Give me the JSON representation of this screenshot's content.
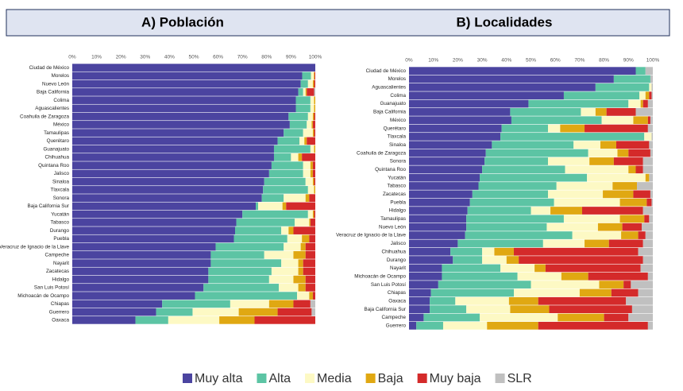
{
  "chart_data": [
    {
      "type": "bar",
      "orientation": "horizontal",
      "stacked": true,
      "title": "A)   Población",
      "categories": [
        "Ciudad de México",
        "Morelos",
        "Nuevo León",
        "Baja California",
        "Colima",
        "Aguascalientes",
        "Coahuila de Zaragoza",
        "México",
        "Tamaulipas",
        "Querétaro",
        "Guanajuato",
        "Chihuahua",
        "Quintana Roo",
        "Jalisco",
        "Sinaloa",
        "Tlaxcala",
        "Sonora",
        "Baja California Sur",
        "Yucatán",
        "Tabasco",
        "Durango",
        "Puebla",
        "Veracruz de Ignacio de la Llave",
        "Campeche",
        "Nayarit",
        "Zacatecas",
        "Hidalgo",
        "San Luis Potosí",
        "Michoacán de Ocampo",
        "Chiapas",
        "Guerrero",
        "Oaxaca"
      ],
      "series": [
        {
          "name": "Muy alta",
          "color": "#4b44a0",
          "values": [
            100,
            94.6,
            94,
            93,
            92,
            92,
            89,
            89.5,
            87,
            84.5,
            83,
            83,
            82,
            81,
            79,
            78.5,
            78,
            75.5,
            70,
            67.5,
            67,
            66.5,
            59,
            57,
            57,
            56,
            56,
            54,
            50.5,
            37,
            34.5,
            26
          ]
        },
        {
          "name": "Alta",
          "color": "#5cc4a4",
          "values": [
            0,
            3.6,
            3,
            2,
            6,
            6,
            8,
            7,
            8,
            9,
            15,
            7,
            13,
            14,
            17,
            18.5,
            9,
            1,
            27,
            24,
            19,
            22,
            28,
            22,
            29,
            26,
            25,
            31,
            42,
            28,
            15,
            13.5
          ]
        },
        {
          "name": "Media",
          "color": "#fdf9c4",
          "values": [
            0,
            1.2,
            2,
            1,
            1.5,
            1.5,
            2,
            2,
            4,
            2,
            1.5,
            3,
            3,
            3,
            3,
            2.5,
            9,
            10,
            2,
            6,
            3,
            6,
            7,
            12,
            7,
            11,
            10,
            8,
            5,
            16,
            19,
            21
          ]
        },
        {
          "name": "Baja",
          "color": "#e0a812",
          "values": [
            0,
            0.3,
            0.5,
            0.5,
            0.5,
            0.5,
            0.5,
            0.5,
            0.5,
            1,
            0.5,
            1.5,
            1,
            1,
            0.5,
            0.5,
            1.5,
            1.5,
            0.5,
            0.5,
            2,
            3,
            2,
            5,
            2,
            2,
            5,
            3,
            1.5,
            10,
            16,
            14.5
          ]
        },
        {
          "name": "Muy baja",
          "color": "#d42a2a",
          "values": [
            0,
            0.3,
            0.5,
            3,
            0,
            0,
            0.5,
            1,
            0.5,
            3.5,
            0,
            5.5,
            1,
            1,
            0.5,
            0,
            2.5,
            12,
            0.5,
            2,
            9,
            2.5,
            4,
            4,
            5,
            5,
            4,
            4,
            1,
            7,
            14,
            25
          ]
        },
        {
          "name": "SLR",
          "color": "#c0c0c0",
          "values": [
            0,
            0,
            0,
            0.5,
            0,
            0,
            0,
            0,
            0,
            0,
            0,
            0,
            0,
            0,
            0,
            0,
            0,
            0,
            0,
            0,
            0,
            0,
            0,
            0,
            0,
            0,
            0,
            0,
            0,
            2,
            1.5,
            0
          ]
        }
      ],
      "xlim": [
        0,
        100
      ],
      "xticks": [
        {
          "value": 0,
          "label": "0%"
        },
        {
          "value": 10,
          "label": "10%"
        },
        {
          "value": 20,
          "label": "20%"
        },
        {
          "value": 30,
          "label": "30%"
        },
        {
          "value": 40,
          "label": "40%"
        },
        {
          "value": 50,
          "label": "50%"
        },
        {
          "value": 60,
          "label": "60%"
        },
        {
          "value": 70,
          "label": "70%"
        },
        {
          "value": 80,
          "label": "80%"
        },
        {
          "value": 90,
          "label": "90%"
        },
        {
          "value": 100,
          "label": "100%"
        }
      ],
      "legend": "bottom"
    },
    {
      "type": "bar",
      "orientation": "horizontal",
      "stacked": true,
      "title": "B) Localidades",
      "categories": [
        "Ciudad de México",
        "Morelos",
        "Aguascalientes",
        "Colima",
        "Guanajuato",
        "Baja California",
        "México",
        "Querétaro",
        "Tlaxcala",
        "Sinaloa",
        "Coahuila de Zaragoza",
        "Sonora",
        "Quintana Roo",
        "Yucatán",
        "Tabasco",
        "Zacatecas",
        "Puebla",
        "Hidalgo",
        "Tamaulipas",
        "Nuevo León",
        "Veracruz de Ignacio de la Llave",
        "Jalisco",
        "Chihuahua",
        "Durango",
        "Nayarit",
        "Michoacán de Ocampo",
        "San Luis Potosí",
        "Chiapas",
        "Oaxaca",
        "Baja California Sur",
        "Campeche",
        "Guerrero"
      ],
      "series": [
        {
          "name": "Muy alta",
          "color": "#4b44a0",
          "values": [
            93,
            84,
            76.5,
            63.5,
            49,
            41.5,
            42,
            38,
            37.5,
            34,
            31.5,
            31,
            30,
            29,
            28.5,
            26,
            25,
            24,
            23.5,
            23.5,
            23,
            20,
            17,
            18,
            13.5,
            13.5,
            12,
            9,
            8.5,
            8.5,
            6,
            3
          ]
        },
        {
          "name": "Alta",
          "color": "#5cc4a4",
          "values": [
            4,
            15,
            22,
            31,
            41,
            29,
            37,
            19,
            59,
            33.5,
            42,
            26,
            34,
            44,
            32,
            31,
            34.5,
            26,
            40,
            33,
            44,
            35,
            13,
            12,
            24,
            31,
            38,
            34,
            10.5,
            15,
            23,
            11
          ]
        },
        {
          "name": "Media",
          "color": "#fdf9c4",
          "values": [
            0,
            0,
            1,
            2.5,
            5,
            6,
            13,
            5,
            3,
            11,
            12,
            17,
            26,
            24,
            23,
            22.5,
            27,
            8,
            23,
            21,
            20,
            17,
            5,
            10,
            14,
            18,
            28,
            27,
            22,
            18,
            32,
            18
          ]
        },
        {
          "name": "Baja",
          "color": "#e0a812",
          "values": [
            0,
            0,
            0,
            1.5,
            1,
            4.5,
            6,
            10,
            0,
            6.5,
            4.5,
            10,
            3,
            1.5,
            10,
            12.5,
            11,
            13,
            10,
            10,
            7,
            10,
            8,
            5,
            4.5,
            11,
            10,
            13,
            12,
            16,
            19,
            21
          ]
        },
        {
          "name": "Muy baja",
          "color": "#d42a2a",
          "values": [
            0,
            0,
            0,
            1,
            2,
            12,
            1,
            26,
            0,
            13.5,
            9,
            12,
            3,
            0,
            0,
            7,
            2,
            25,
            2,
            8,
            3,
            14,
            51,
            51,
            39,
            24.5,
            3,
            11,
            36,
            34,
            10,
            45
          ]
        },
        {
          "name": "SLR",
          "color": "#c0c0c0",
          "values": [
            3,
            1,
            0.5,
            0.5,
            2,
            7,
            1,
            2,
            0.5,
            1.5,
            1,
            4,
            4,
            1.5,
            6.5,
            1,
            0.5,
            4,
            1.5,
            4.5,
            3,
            4,
            6,
            4,
            5,
            2,
            9,
            6,
            11,
            8.5,
            10,
            2
          ]
        }
      ],
      "xlim": [
        0,
        100
      ],
      "xticks": [
        {
          "value": 0,
          "label": "0%"
        },
        {
          "value": 10,
          "label": "10%"
        },
        {
          "value": 20,
          "label": "20%"
        },
        {
          "value": 30,
          "label": "30%"
        },
        {
          "value": 40,
          "label": "40%"
        },
        {
          "value": 50,
          "label": "50%"
        },
        {
          "value": 60,
          "label": "60%"
        },
        {
          "value": 70,
          "label": "70%"
        },
        {
          "value": 80,
          "label": "80%"
        },
        {
          "value": 90,
          "label": "90%"
        },
        {
          "value": 100,
          "label": "100%"
        }
      ],
      "legend": "bottom"
    }
  ]
}
